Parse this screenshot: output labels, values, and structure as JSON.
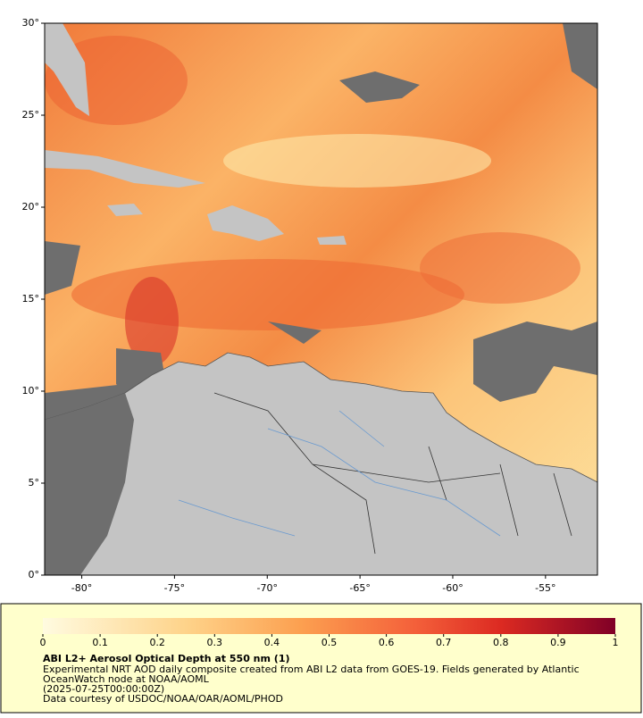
{
  "map": {
    "xlim": [
      -82,
      -52.2
    ],
    "ylim": [
      0,
      30
    ],
    "xticks": [
      {
        "value": -80,
        "label": "-80°"
      },
      {
        "value": -75,
        "label": "-75°"
      },
      {
        "value": -70,
        "label": "-70°"
      },
      {
        "value": -65,
        "label": "-65°"
      },
      {
        "value": -60,
        "label": "-60°"
      },
      {
        "value": -55,
        "label": "-55°"
      }
    ],
    "yticks": [
      {
        "value": 0,
        "label": "0°"
      },
      {
        "value": 5,
        "label": "5°"
      },
      {
        "value": 10,
        "label": "10°"
      },
      {
        "value": 15,
        "label": "15°"
      },
      {
        "value": 20,
        "label": "20°"
      },
      {
        "value": 25,
        "label": "25°"
      },
      {
        "value": 30,
        "label": "30°"
      }
    ]
  },
  "colorbar": {
    "lim": [
      0,
      1
    ],
    "ticks": [
      0,
      0.1,
      0.2,
      0.3,
      0.4,
      0.5,
      0.6,
      0.7,
      0.8,
      0.9,
      1
    ]
  },
  "caption": {
    "title": "ABI L2+ Aerosol Optical Depth at 550 nm (1)",
    "lines": [
      "Experimental NRT AOD daily composite created from ABI L2 data from GOES-19. Fields generated by Atlantic",
      "OceanWatch node at NOAA/AOML",
      "(2025-07-25T00:00:00Z)",
      "Data courtesy of USDOC/NOAA/OAR/AOML/PHOD"
    ]
  }
}
